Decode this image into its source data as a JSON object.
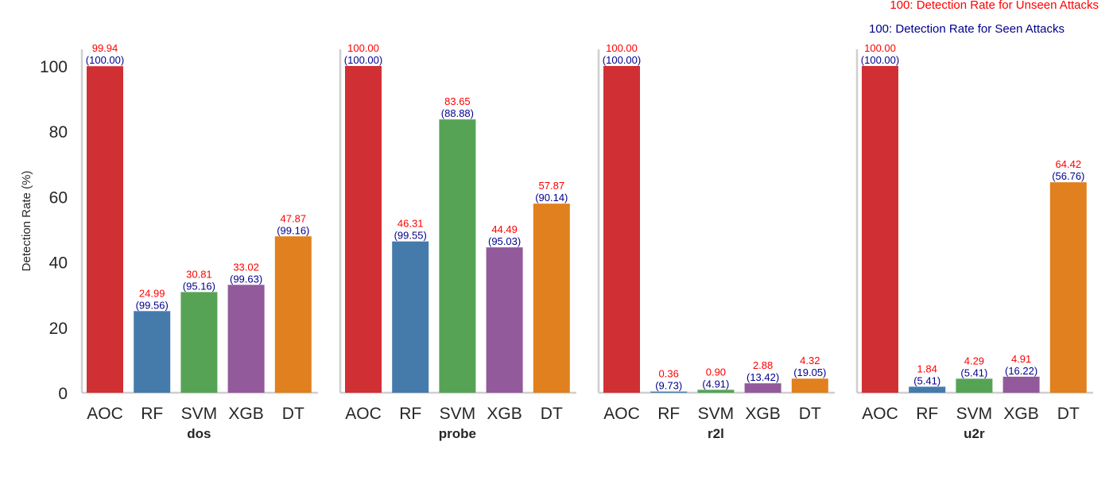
{
  "legend": {
    "unseen": "100: Detection Rate for Unseen Attacks",
    "seen": "100: Detection Rate for Seen Attacks"
  },
  "colors": {
    "unseen_text": "#ff0000",
    "seen_text": "#00008b",
    "AOC": "#d03034",
    "RF": "#457bab",
    "SVM": "#57a356",
    "XGB": "#925a9a",
    "DT": "#e0801f",
    "axis": "#cfcfcf",
    "tick_text": "#262626"
  },
  "chart_data": {
    "type": "bar",
    "ylabel": "Detection Rate (%)",
    "ylim": [
      0,
      105
    ],
    "yticks": [
      0,
      20,
      40,
      60,
      80,
      100
    ],
    "categories": [
      "AOC",
      "RF",
      "SVM",
      "XGB",
      "DT"
    ],
    "grid": false,
    "legend_position": "top-right",
    "panels": [
      {
        "name": "dos",
        "unseen": [
          99.94,
          24.99,
          30.81,
          33.02,
          47.87
        ],
        "seen": [
          100.0,
          99.56,
          95.16,
          99.63,
          99.16
        ],
        "unseen_labels": [
          "99.94",
          "24.99",
          "30.81",
          "33.02",
          "47.87"
        ],
        "seen_labels": [
          "(100.00)",
          "(99.56)",
          "(95.16)",
          "(99.63)",
          "(99.16)"
        ]
      },
      {
        "name": "probe",
        "unseen": [
          100.0,
          46.31,
          83.65,
          44.49,
          57.87
        ],
        "seen": [
          100.0,
          99.55,
          88.88,
          95.03,
          90.14
        ],
        "unseen_labels": [
          "100.00",
          "46.31",
          "83.65",
          "44.49",
          "57.87"
        ],
        "seen_labels": [
          "(100.00)",
          "(99.55)",
          "(88.88)",
          "(95.03)",
          "(90.14)"
        ]
      },
      {
        "name": "r2l",
        "unseen": [
          100.0,
          0.36,
          0.9,
          2.88,
          4.32
        ],
        "seen": [
          100.0,
          9.73,
          4.91,
          13.42,
          19.05
        ],
        "unseen_labels": [
          "100.00",
          "0.36",
          "0.90",
          "2.88",
          "4.32"
        ],
        "seen_labels": [
          "(100.00)",
          "(9.73)",
          "(4.91)",
          "(13.42)",
          "(19.05)"
        ]
      },
      {
        "name": "u2r",
        "unseen": [
          100.0,
          1.84,
          4.29,
          4.91,
          64.42
        ],
        "seen": [
          100.0,
          5.41,
          5.41,
          16.22,
          56.76
        ],
        "unseen_labels": [
          "100.00",
          "1.84",
          "4.29",
          "4.91",
          "64.42"
        ],
        "seen_labels": [
          "(100.00)",
          "(5.41)",
          "(5.41)",
          "(16.22)",
          "(56.76)"
        ]
      }
    ]
  }
}
